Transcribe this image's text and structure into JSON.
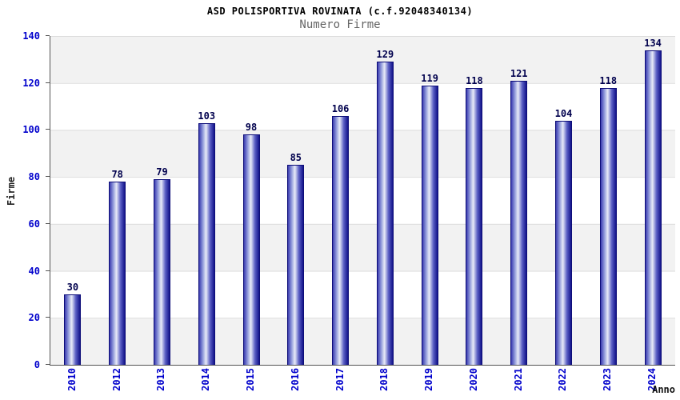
{
  "chart_data": {
    "type": "bar",
    "title": "ASD POLISPORTIVA ROVINATA (c.f.92048340134)",
    "subtitle": "Numero Firme",
    "xlabel": "Anno",
    "ylabel": "Firme",
    "categories": [
      "2010",
      "2012",
      "2013",
      "2014",
      "2015",
      "2016",
      "2017",
      "2018",
      "2019",
      "2020",
      "2021",
      "2022",
      "2023",
      "2024"
    ],
    "values": [
      30,
      78,
      79,
      103,
      98,
      85,
      106,
      129,
      119,
      118,
      121,
      104,
      118,
      134
    ],
    "ylim": [
      0,
      140
    ],
    "ytick_step": 20,
    "grid": true,
    "legend": "none",
    "colors": {
      "tick_label": "#0000cc",
      "value_label": "#00004d",
      "bar_dark": "#12128a",
      "bar_mid": "#3b3bb0",
      "bar_light": "#e8ebf8",
      "band": "#f2f2f2",
      "grid_line": "#dcdcdc",
      "axis": "#555555"
    }
  }
}
